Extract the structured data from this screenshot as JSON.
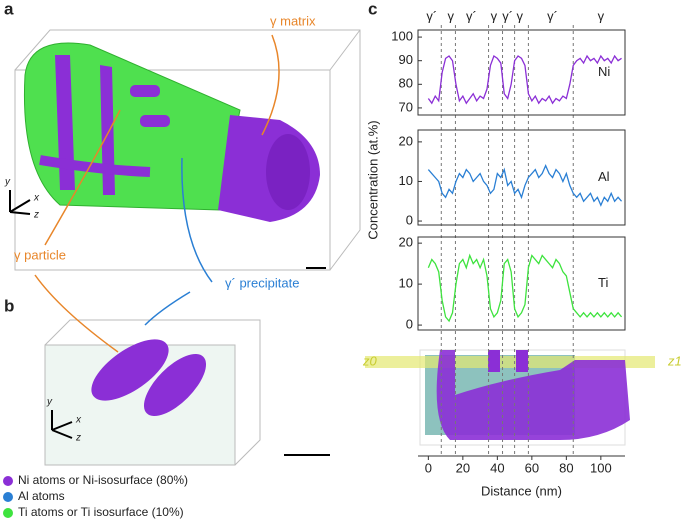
{
  "figure": {
    "panel_labels": [
      "a",
      "b",
      "c"
    ],
    "annotations": [
      "γ matrix",
      "γ particle",
      "γ´ precipitate"
    ],
    "axis_letters": [
      "y",
      "x",
      "z",
      "y",
      "x",
      "z"
    ],
    "ylabel": "Concentration (at.%)",
    "phase_labels": [
      "γ´",
      "γ",
      "γ´",
      "γ",
      "γ´",
      "γ",
      "γ´",
      "γ"
    ],
    "phase_label_x": [
      2,
      13,
      25,
      38,
      46,
      53,
      72,
      100
    ],
    "phase_boundaries": [
      7.5,
      15.7,
      34.9,
      43,
      50,
      58,
      84
    ],
    "z_labels": [
      "z0",
      "z1"
    ],
    "legend": [
      {
        "label": "Ni atoms or Ni-isosurface (80%)",
        "color": "#8b2fd6"
      },
      {
        "label": "Al atoms",
        "color": "#2a7fd4"
      },
      {
        "label": "Ti atoms or Ti isosurface (10%)",
        "color": "#3ee33e"
      }
    ]
  },
  "chart_data": [
    {
      "type": "line",
      "xlim": [
        -6,
        114
      ],
      "ylim": [
        67,
        103
      ],
      "yticks": [
        70,
        80,
        90,
        100
      ],
      "x": [
        0,
        2,
        4,
        6,
        8,
        10,
        12,
        14,
        16,
        18,
        20,
        22,
        24,
        26,
        28,
        30,
        32,
        34,
        36,
        38,
        40,
        42,
        44,
        46,
        48,
        50,
        52,
        54,
        56,
        58,
        60,
        62,
        64,
        66,
        68,
        70,
        72,
        74,
        76,
        78,
        80,
        82,
        84,
        86,
        88,
        90,
        92,
        94,
        96,
        98,
        100,
        102,
        104,
        106,
        108,
        110,
        112
      ],
      "series": [
        {
          "name": "Ni",
          "color": "#8b2fd6",
          "values": [
            74,
            72,
            75,
            73,
            85,
            91,
            92,
            90,
            80,
            73,
            75,
            72,
            74,
            76,
            73,
            75,
            74,
            78,
            88,
            92,
            91,
            89,
            76,
            74,
            80,
            90,
            92,
            91,
            88,
            76,
            73,
            75,
            72,
            74,
            73,
            75,
            72,
            74,
            73,
            75,
            74,
            80,
            88,
            90,
            91,
            89,
            92,
            90,
            91,
            89,
            92,
            90,
            91,
            89,
            92,
            90,
            91
          ]
        }
      ]
    },
    {
      "type": "line",
      "xlim": [
        -6,
        114
      ],
      "ylim": [
        -1,
        23
      ],
      "yticks": [
        0,
        10,
        20
      ],
      "x": [
        0,
        2,
        4,
        6,
        8,
        10,
        12,
        14,
        16,
        18,
        20,
        22,
        24,
        26,
        28,
        30,
        32,
        34,
        36,
        38,
        40,
        42,
        44,
        46,
        48,
        50,
        52,
        54,
        56,
        58,
        60,
        62,
        64,
        66,
        68,
        70,
        72,
        74,
        76,
        78,
        80,
        82,
        84,
        86,
        88,
        90,
        92,
        94,
        96,
        98,
        100,
        102,
        104,
        106,
        108,
        110,
        112
      ],
      "series": [
        {
          "name": "Al",
          "color": "#2a7fd4",
          "values": [
            13,
            12,
            11,
            10,
            7,
            6,
            8,
            7,
            10,
            12,
            11,
            13,
            12,
            10,
            11,
            12,
            10,
            9,
            7,
            8,
            12,
            11,
            13,
            9,
            10,
            7,
            8,
            6,
            9,
            11,
            12,
            13,
            11,
            12,
            14,
            12,
            11,
            13,
            12,
            10,
            12,
            9,
            7,
            6,
            7,
            5,
            6,
            7,
            5,
            6,
            4,
            6,
            5,
            7,
            5,
            6,
            5
          ]
        }
      ]
    },
    {
      "type": "line",
      "xlim": [
        -6,
        114
      ],
      "ylim": [
        -1.2,
        21.5
      ],
      "yticks": [
        0,
        10,
        20
      ],
      "xlabel": "Distance (nm)",
      "xticks": [
        0,
        20,
        40,
        60,
        80,
        100
      ],
      "x": [
        0,
        2,
        4,
        6,
        8,
        10,
        12,
        14,
        16,
        18,
        20,
        22,
        24,
        26,
        28,
        30,
        32,
        34,
        36,
        38,
        40,
        42,
        44,
        46,
        48,
        50,
        52,
        54,
        56,
        58,
        60,
        62,
        64,
        66,
        68,
        70,
        72,
        74,
        76,
        78,
        80,
        82,
        84,
        86,
        88,
        90,
        92,
        94,
        96,
        98,
        100,
        102,
        104,
        106,
        108,
        110,
        112
      ],
      "series": [
        {
          "name": "Ti",
          "color": "#3ee33e",
          "values": [
            14,
            16,
            15,
            13,
            6,
            2,
            1,
            3,
            10,
            15,
            16,
            14,
            17,
            15,
            16,
            14,
            16,
            12,
            4,
            2,
            3,
            6,
            15,
            16,
            13,
            4,
            2,
            3,
            5,
            14,
            17,
            16,
            15,
            17,
            16,
            15,
            14,
            16,
            15,
            13,
            12,
            8,
            4,
            3,
            2,
            3,
            2,
            3,
            2,
            3,
            2,
            3,
            2,
            3,
            2,
            3,
            2
          ]
        }
      ]
    }
  ]
}
